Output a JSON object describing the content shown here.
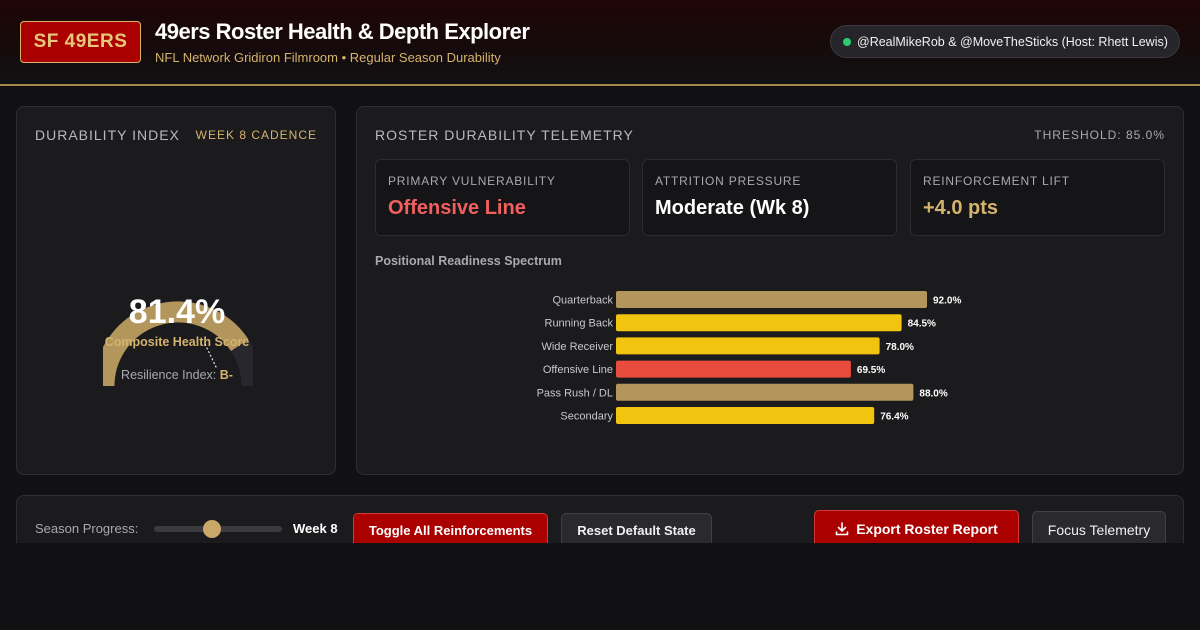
{
  "header": {
    "logo_text": "SF 49ERS",
    "title": "49ers Roster Health & Depth Explorer",
    "subtitle": "NFL Network Gridiron Filmroom • Regular Season Durability",
    "hosts": "@RealMikeRob & @MoveTheSticks (Host: Rhett Lewis)",
    "live_color": "#2ecc71"
  },
  "durability": {
    "heading": "DURABILITY INDEX",
    "cadence": "WEEK 8 CADENCE",
    "value_text": "81.4%",
    "value": 81.4,
    "label": "Composite Health Score",
    "resilience_label": "Resilience Index:",
    "resilience_grade": "B-",
    "fill_color": "#b2965c",
    "track_color": "#28272f"
  },
  "telemetry": {
    "heading": "ROSTER DURABILITY TELEMETRY",
    "threshold": "THRESHOLD: 85.0%",
    "kpis": [
      {
        "title": "PRIMARY VULNERABILITY",
        "value": "Offensive Line",
        "color": "#f25f5f"
      },
      {
        "title": "ATTRITION PRESSURE",
        "value": "Moderate (Wk 8)",
        "color": "#ffffff"
      },
      {
        "title": "REINFORCEMENT LIFT",
        "value": "+4.0 pts",
        "color": "#d4b36d"
      }
    ],
    "chart_title": "Positional Readiness Spectrum"
  },
  "chart_data": {
    "type": "bar",
    "orientation": "horizontal",
    "title": "Positional Readiness Spectrum",
    "categories": [
      "Quarterback",
      "Running Back",
      "Wide Receiver",
      "Offensive Line",
      "Pass Rush / DL",
      "Secondary"
    ],
    "values": [
      92.0,
      84.5,
      78.0,
      69.5,
      88.0,
      76.4
    ],
    "value_labels": [
      "92.0%",
      "84.5%",
      "78.0%",
      "69.5%",
      "88.0%",
      "76.4%"
    ],
    "colors": [
      "#b2965c",
      "#f1c40f",
      "#f1c40f",
      "#e74c3c",
      "#b2965c",
      "#f1c40f"
    ],
    "xlim": [
      0,
      100
    ],
    "grid": false
  },
  "controls": {
    "progress_label": "Season Progress:",
    "progress_fraction": 0.45,
    "week_label": "Week 8",
    "toggle_label": "Toggle All Reinforcements",
    "reset_label": "Reset Default State",
    "export_label": "Export Roster Report",
    "focus_label": "Focus Telemetry"
  }
}
